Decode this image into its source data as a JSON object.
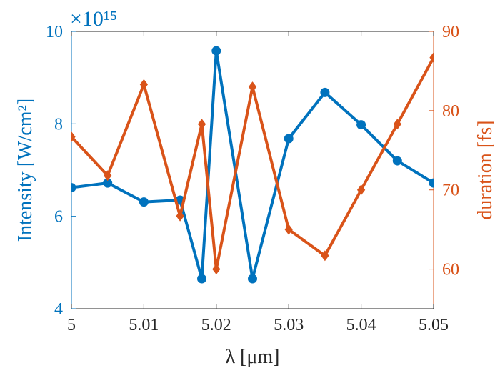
{
  "chart_data": {
    "type": "line",
    "x": [
      5.0,
      5.005,
      5.01,
      5.015,
      5.018,
      5.02,
      5.025,
      5.03,
      5.035,
      5.04,
      5.045,
      5.05
    ],
    "xlabel": "λ [μm]",
    "xlim": [
      5.0,
      5.05
    ],
    "xticks": [
      5.0,
      5.01,
      5.02,
      5.03,
      5.04,
      5.05
    ],
    "xtick_labels": [
      "5",
      "5.01",
      "5.02",
      "5.03",
      "5.04",
      "5.05"
    ],
    "y_left": {
      "label": "Intensity [W/cm²]",
      "lim": [
        4,
        10
      ],
      "ticks": [
        4,
        6,
        8,
        10
      ],
      "tick_labels": [
        "4",
        "6",
        "8",
        "10"
      ],
      "exponent_label": "×10¹⁵",
      "color": "#0072BD"
    },
    "y_right": {
      "label": "duration [fs]",
      "lim": [
        55,
        90
      ],
      "ticks": [
        60,
        70,
        80,
        90
      ],
      "tick_labels": [
        "60",
        "70",
        "80",
        "90"
      ],
      "color": "#D95319"
    },
    "series": [
      {
        "axis": "left",
        "marker": "circle",
        "color": "#0072BD",
        "x": [
          5.0,
          5.005,
          5.01,
          5.015,
          5.018,
          5.02,
          5.025,
          5.03,
          5.035,
          5.04,
          5.045,
          5.05
        ],
        "values": [
          6.62,
          6.72,
          6.31,
          6.35,
          4.65,
          9.58,
          4.65,
          7.68,
          8.68,
          7.98,
          7.2,
          6.72
        ]
      },
      {
        "axis": "right",
        "marker": "diamond",
        "color": "#D95319",
        "x": [
          5.0,
          5.005,
          5.01,
          5.015,
          5.018,
          5.02,
          5.025,
          5.03,
          5.035,
          5.04,
          5.045,
          5.05
        ],
        "values": [
          76.7,
          71.8,
          83.3,
          66.7,
          78.3,
          60.0,
          83.0,
          65.0,
          61.7,
          70.0,
          78.3,
          86.7
        ]
      }
    ],
    "grid": false,
    "legend": "none"
  }
}
